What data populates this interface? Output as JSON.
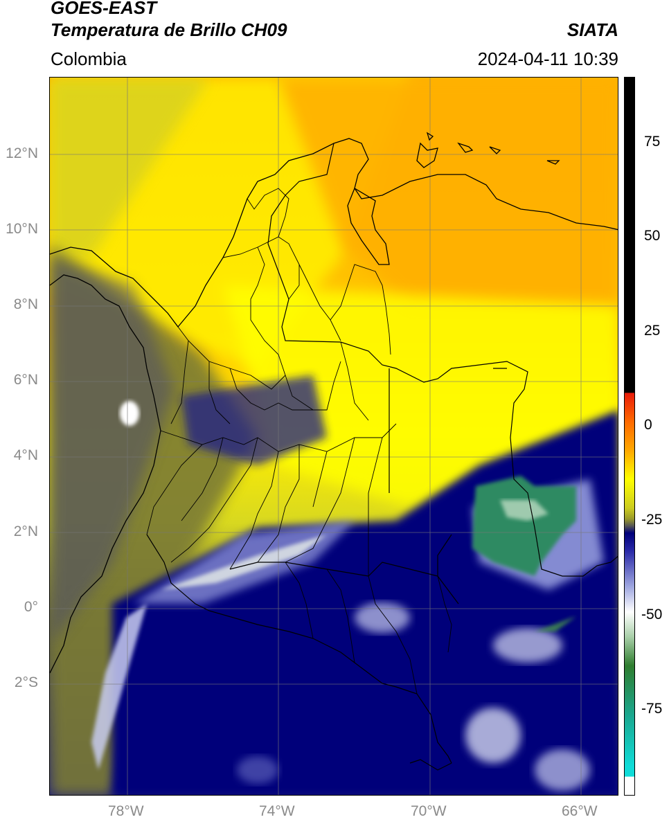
{
  "header": {
    "title_line1": "GOES-EAST",
    "title_line2": "Temperatura de Brillo CH09",
    "region": "Colombia",
    "source": "SIATA",
    "timestamp": "2024-04-11 10:39"
  },
  "map": {
    "lat_labels": [
      "12°N",
      "10°N",
      "8°N",
      "6°N",
      "4°N",
      "2°N",
      "0°",
      "2°S"
    ],
    "lon_labels": [
      "78°W",
      "74°W",
      "70°W",
      "66°W"
    ],
    "gridlines": true,
    "features": [
      "coastline",
      "country-borders",
      "department-borders"
    ]
  },
  "colorbar": {
    "tick_labels": [
      "75",
      "50",
      "25",
      "0",
      "-25",
      "-50",
      "-75"
    ],
    "colors": {
      "black": "#000000",
      "red": "#e81c0a",
      "orange": "#ffa800",
      "yellow": "#ffff00",
      "olive": "#9a9a2a",
      "navy": "#00007a",
      "white": "#ffffff",
      "green": "#2f7d2f",
      "cyan": "#10dcd8"
    }
  }
}
